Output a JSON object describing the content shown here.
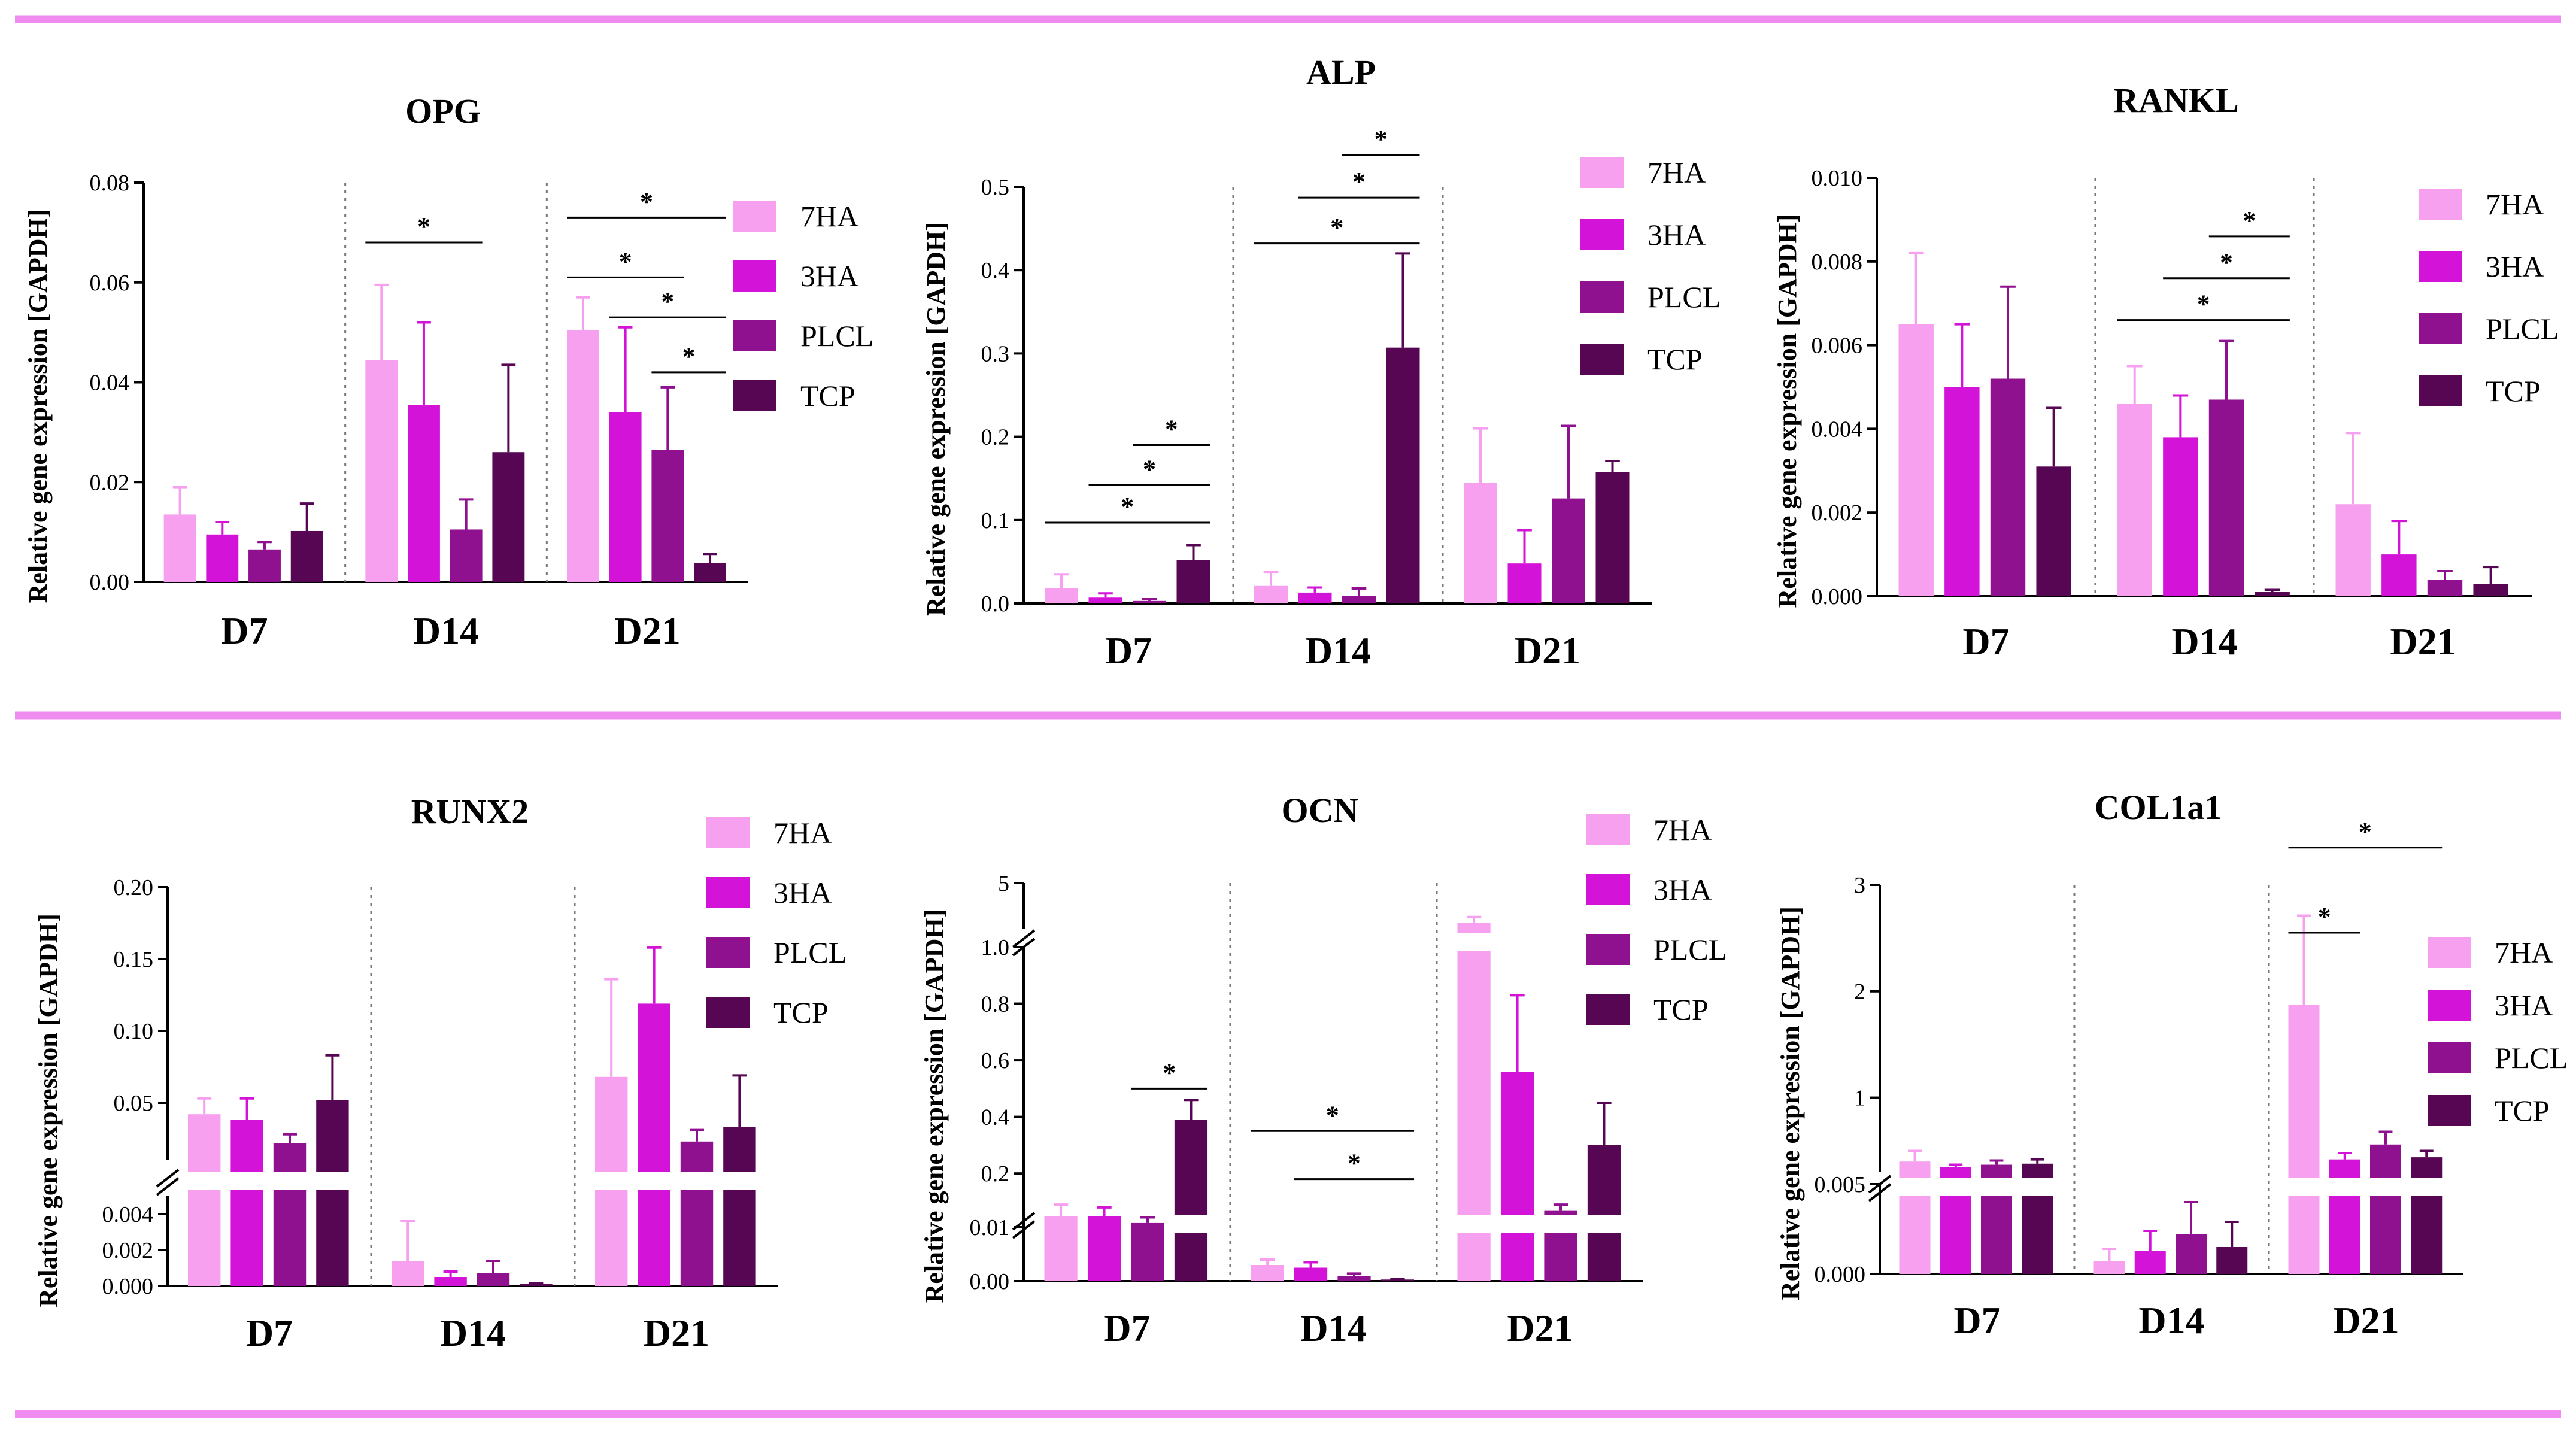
{
  "legend_series": [
    "7HA",
    "3HA",
    "PLCL",
    "TCP"
  ],
  "colors": {
    "7HA": "#f7a0f0",
    "3HA": "#d313d8",
    "PLCL": "#8f118f",
    "TCP": "#560652",
    "divider": "#f08cf0"
  },
  "groups": [
    "D7",
    "D14",
    "D21"
  ],
  "chart_data": [
    {
      "type": "bar",
      "title": "OPG",
      "ylabel": "Relative gene expression [GAPDH]",
      "categories": [
        "D7",
        "D14",
        "D21"
      ],
      "ylim": [
        0,
        0.08
      ],
      "ticks": [
        "0.00",
        "0.02",
        "0.04",
        "0.06",
        "0.08"
      ],
      "series": [
        {
          "name": "7HA",
          "values": [
            0.0135,
            0.0445,
            0.0505
          ],
          "errors": [
            0.0055,
            0.015,
            0.0065
          ]
        },
        {
          "name": "3HA",
          "values": [
            0.0095,
            0.0355,
            0.034
          ],
          "errors": [
            0.0025,
            0.0165,
            0.017
          ]
        },
        {
          "name": "PLCL",
          "values": [
            0.0065,
            0.0105,
            0.0265
          ],
          "errors": [
            0.0015,
            0.006,
            0.0125
          ]
        },
        {
          "name": "TCP",
          "values": [
            0.0102,
            0.026,
            0.0038
          ],
          "errors": [
            0.0055,
            0.0175,
            0.0018
          ]
        }
      ],
      "significance": [
        {
          "label": "*",
          "group": 1,
          "from": 0,
          "to": 2,
          "y": 0.068
        },
        {
          "label": "*",
          "group": 2,
          "from": 0,
          "to": 3,
          "y": 0.073
        },
        {
          "label": "*",
          "group": 2,
          "from": 0,
          "to": 2,
          "y": 0.061
        },
        {
          "label": "*",
          "group": 2,
          "from": 1,
          "to": 3,
          "y": 0.053
        },
        {
          "label": "*",
          "group": 2,
          "from": 2,
          "to": 3,
          "y": 0.042
        }
      ]
    },
    {
      "type": "bar",
      "title": "ALP",
      "ylabel": "Relative gene expression [GAPDH]",
      "categories": [
        "D7",
        "D14",
        "D21"
      ],
      "ylim": [
        0,
        0.5
      ],
      "ticks": [
        "0.0",
        "0.1",
        "0.2",
        "0.3",
        "0.4",
        "0.5"
      ],
      "series": [
        {
          "name": "7HA",
          "values": [
            0.018,
            0.021,
            0.145
          ],
          "errors": [
            0.017,
            0.017,
            0.065
          ]
        },
        {
          "name": "3HA",
          "values": [
            0.007,
            0.013,
            0.048
          ],
          "errors": [
            0.005,
            0.006,
            0.04
          ]
        },
        {
          "name": "PLCL",
          "values": [
            0.003,
            0.009,
            0.126
          ],
          "errors": [
            0.002,
            0.009,
            0.087
          ]
        },
        {
          "name": "TCP",
          "values": [
            0.052,
            0.307,
            0.158
          ],
          "errors": [
            0.018,
            0.113,
            0.013
          ]
        }
      ],
      "significance": [
        {
          "label": "*",
          "group": 0,
          "from": 0,
          "to": 3,
          "y": 0.097
        },
        {
          "label": "*",
          "group": 0,
          "from": 1,
          "to": 3,
          "y": 0.142
        },
        {
          "label": "*",
          "group": 0,
          "from": 2,
          "to": 3,
          "y": 0.19
        },
        {
          "label": "*",
          "group": 1,
          "from": 0,
          "to": 3,
          "y": 0.432
        },
        {
          "label": "*",
          "group": 1,
          "from": 1,
          "to": 3,
          "y": 0.487
        },
        {
          "label": "*",
          "group": 1,
          "from": 2,
          "to": 3,
          "y": 0.538
        }
      ]
    },
    {
      "type": "bar",
      "title": "RANKL",
      "ylabel": "Relative gene expression [GAPDH]",
      "categories": [
        "D7",
        "D14",
        "D21"
      ],
      "ylim": [
        0,
        0.01
      ],
      "ticks": [
        "0.000",
        "0.002",
        "0.004",
        "0.006",
        "0.008",
        "0.010"
      ],
      "series": [
        {
          "name": "7HA",
          "values": [
            0.0065,
            0.0046,
            0.0022
          ],
          "errors": [
            0.0017,
            0.0009,
            0.0017
          ]
        },
        {
          "name": "3HA",
          "values": [
            0.005,
            0.0038,
            0.001
          ],
          "errors": [
            0.0015,
            0.001,
            0.0008
          ]
        },
        {
          "name": "PLCL",
          "values": [
            0.0052,
            0.0047,
            0.0004
          ],
          "errors": [
            0.0022,
            0.0014,
            0.0002
          ]
        },
        {
          "name": "TCP",
          "values": [
            0.0031,
            0.0001,
            0.0003
          ],
          "errors": [
            0.0014,
            5e-05,
            0.0004
          ]
        }
      ],
      "significance": [
        {
          "label": "*",
          "group": 1,
          "from": 0,
          "to": 3,
          "y": 0.0066
        },
        {
          "label": "*",
          "group": 1,
          "from": 1,
          "to": 3,
          "y": 0.0076
        },
        {
          "label": "*",
          "group": 1,
          "from": 2,
          "to": 3,
          "y": 0.0086
        }
      ]
    },
    {
      "type": "bar",
      "title": "RUNX2",
      "ylabel": "Relative gene expression [GAPDH]",
      "categories": [
        "D7",
        "D14",
        "D21"
      ],
      "ylim": [
        0,
        0.2
      ],
      "broken_axis": true,
      "lower_ticks": [
        "0.000",
        "0.002",
        "0.004"
      ],
      "upper_ticks": [
        "0.05",
        "0.10",
        "0.15",
        "0.20"
      ],
      "series": [
        {
          "name": "7HA",
          "values": [
            0.042,
            0.0014,
            0.068
          ],
          "errors": [
            0.011,
            0.0022,
            0.068
          ]
        },
        {
          "name": "3HA",
          "values": [
            0.038,
            0.0005,
            0.119
          ],
          "errors": [
            0.015,
            0.0003,
            0.039
          ]
        },
        {
          "name": "PLCL",
          "values": [
            0.022,
            0.0007,
            0.023
          ],
          "errors": [
            0.006,
            0.0007,
            0.008
          ]
        },
        {
          "name": "TCP",
          "values": [
            0.052,
            0.0001,
            0.033
          ],
          "errors": [
            0.031,
            5e-05,
            0.036
          ]
        }
      ],
      "significance": []
    },
    {
      "type": "bar",
      "title": "OCN",
      "ylabel": "Relative gene expression [GAPDH]",
      "categories": [
        "D7",
        "D14",
        "D21"
      ],
      "ylim": [
        0,
        5
      ],
      "broken_axis": true,
      "lower_ticks": [
        "0.00",
        "0.01"
      ],
      "upper_ticks": [
        "0.2",
        "0.4",
        "0.6",
        "0.8",
        "1.0",
        "5"
      ],
      "series": [
        {
          "name": "7HA",
          "values": [
            0.05,
            0.003,
            1.55
          ],
          "errors": [
            0.04,
            0.001,
            0.5
          ]
        },
        {
          "name": "3HA",
          "values": [
            0.05,
            0.0025,
            0.56
          ],
          "errors": [
            0.03,
            0.001,
            0.27
          ]
        },
        {
          "name": "PLCL",
          "values": [
            0.025,
            0.001,
            0.07
          ],
          "errors": [
            0.02,
            0.0004,
            0.02
          ]
        },
        {
          "name": "TCP",
          "values": [
            0.39,
            0.0003,
            0.3
          ],
          "errors": [
            0.07,
            0.0001,
            0.15
          ]
        }
      ],
      "significance": [
        {
          "label": "*",
          "group": 0,
          "from": 2,
          "to": 3,
          "y": 0.5
        },
        {
          "label": "*",
          "group": 1,
          "from": 0,
          "to": 3,
          "y": 0.35
        },
        {
          "label": "*",
          "group": 1,
          "from": 1,
          "to": 3,
          "y": 0.18
        }
      ]
    },
    {
      "type": "bar",
      "title": "COL1a1",
      "ylabel": "Relative gene expression [GAPDH]",
      "categories": [
        "D7",
        "D14",
        "D21"
      ],
      "ylim": [
        0,
        3
      ],
      "broken_axis": true,
      "lower_ticks": [
        "0.000",
        "0.005"
      ],
      "upper_ticks": [
        "1",
        "2",
        "3"
      ],
      "series": [
        {
          "name": "7HA",
          "values": [
            0.4,
            0.0007,
            1.87
          ],
          "errors": [
            0.1,
            0.0007,
            0.84
          ]
        },
        {
          "name": "3HA",
          "values": [
            0.35,
            0.0013,
            0.42
          ],
          "errors": [
            0.02,
            0.0011,
            0.06
          ]
        },
        {
          "name": "PLCL",
          "values": [
            0.37,
            0.0022,
            0.56
          ],
          "errors": [
            0.04,
            0.0018,
            0.12
          ]
        },
        {
          "name": "TCP",
          "values": [
            0.38,
            0.0015,
            0.44
          ],
          "errors": [
            0.04,
            0.0014,
            0.06
          ]
        }
      ],
      "significance": [
        {
          "label": "*",
          "group": 2,
          "from": 0,
          "to": 1,
          "y": 2.55
        },
        {
          "label": "*",
          "group": 2,
          "from": 0,
          "to": 3,
          "y": 3.35
        }
      ]
    }
  ]
}
